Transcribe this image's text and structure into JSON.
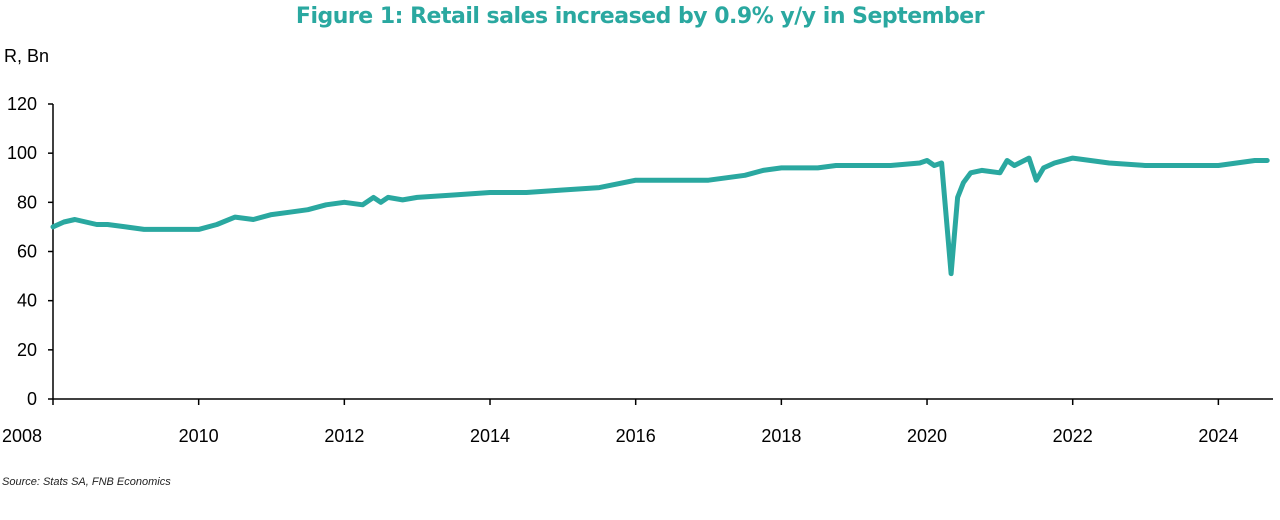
{
  "title": "Figure 1: Retail sales increased by 0.9% y/y in September",
  "source": "Source: Stats SA, FNB Economics",
  "chart_data": {
    "type": "line",
    "title": "Figure 1: Retail sales increased by 0.9% y/y in September",
    "ylabel": "R, Bn",
    "xlabel": "",
    "ylim": [
      0,
      120
    ],
    "xlim": [
      2008,
      2024.75
    ],
    "y_ticks": [
      "0",
      "20",
      "40",
      "60",
      "80",
      "100",
      "120"
    ],
    "x_ticks": [
      "2008",
      "2010",
      "2012",
      "2014",
      "2016",
      "2018",
      "2020",
      "2022",
      "2024"
    ],
    "grid": false,
    "color": "#2aa8a0",
    "series": [
      {
        "name": "Retail sales",
        "x": [
          2008,
          2008.15,
          2008.3,
          2008.45,
          2008.6,
          2008.75,
          2009.0,
          2009.25,
          2009.5,
          2009.75,
          2010.0,
          2010.25,
          2010.5,
          2010.75,
          2011.0,
          2011.25,
          2011.5,
          2011.75,
          2012.0,
          2012.25,
          2012.4,
          2012.5,
          2012.6,
          2012.8,
          2013.0,
          2013.5,
          2014.0,
          2014.5,
          2015.0,
          2015.5,
          2016.0,
          2016.5,
          2017.0,
          2017.5,
          2017.75,
          2018.0,
          2018.5,
          2018.75,
          2019.0,
          2019.5,
          2019.9,
          2020.0,
          2020.1,
          2020.2,
          2020.33,
          2020.42,
          2020.5,
          2020.6,
          2020.75,
          2021.0,
          2021.1,
          2021.2,
          2021.4,
          2021.5,
          2021.6,
          2021.75,
          2022.0,
          2022.5,
          2023.0,
          2023.5,
          2024.0,
          2024.5,
          2024.67
        ],
        "values": [
          70,
          72,
          73,
          72,
          71,
          71,
          70,
          69,
          69,
          69,
          69,
          71,
          74,
          73,
          75,
          76,
          77,
          79,
          80,
          79,
          82,
          80,
          82,
          81,
          82,
          83,
          84,
          84,
          85,
          86,
          89,
          89,
          89,
          91,
          93,
          94,
          94,
          95,
          95,
          95,
          96,
          97,
          95,
          96,
          51,
          82,
          88,
          92,
          93,
          92,
          97,
          95,
          98,
          89,
          94,
          96,
          98,
          96,
          95,
          95,
          95,
          97,
          97
        ]
      }
    ]
  }
}
